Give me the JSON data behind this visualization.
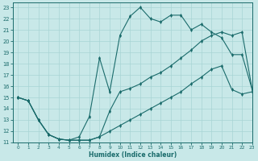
{
  "xlabel": "Humidex (Indice chaleur)",
  "line_color": "#1a6b6b",
  "bg_color": "#c8e8e8",
  "grid_color": "#a8d4d4",
  "xlim": [
    -0.5,
    23
  ],
  "ylim": [
    11,
    23.4
  ],
  "xticks": [
    0,
    1,
    2,
    3,
    4,
    5,
    6,
    7,
    8,
    9,
    10,
    11,
    12,
    13,
    14,
    15,
    16,
    17,
    18,
    19,
    20,
    21,
    22,
    23
  ],
  "yticks": [
    11,
    12,
    13,
    14,
    15,
    16,
    17,
    18,
    19,
    20,
    21,
    22,
    23
  ],
  "line1_x": [
    0,
    1,
    2,
    3,
    4,
    5,
    6,
    7,
    8,
    9,
    10,
    11,
    12,
    13,
    14,
    15,
    16,
    17,
    18,
    19,
    20,
    21,
    22,
    23
  ],
  "line1_y": [
    15,
    14.7,
    13,
    11.7,
    11.3,
    11.2,
    11.5,
    13.3,
    18.5,
    15.5,
    20.5,
    22.2,
    23.0,
    22.0,
    21.7,
    22.3,
    22.3,
    21.0,
    21.5,
    20.8,
    20.3,
    18.8,
    18.8,
    15.7
  ],
  "line2_x": [
    0,
    1,
    2,
    3,
    4,
    5,
    6,
    7,
    8,
    9,
    10,
    11,
    12,
    13,
    14,
    15,
    16,
    17,
    18,
    19,
    20,
    21,
    22,
    23
  ],
  "line2_y": [
    15,
    14.7,
    13,
    11.7,
    11.3,
    11.2,
    11.2,
    11.2,
    11.5,
    13.8,
    15.5,
    15.8,
    16.2,
    16.8,
    17.2,
    17.8,
    18.5,
    19.2,
    20.0,
    20.5,
    20.8,
    20.5,
    20.8,
    15.7
  ],
  "line3_x": [
    0,
    1,
    2,
    3,
    4,
    5,
    6,
    7,
    8,
    9,
    10,
    11,
    12,
    13,
    14,
    15,
    16,
    17,
    18,
    19,
    20,
    21,
    22,
    23
  ],
  "line3_y": [
    15,
    14.7,
    13,
    11.7,
    11.3,
    11.2,
    11.2,
    11.2,
    11.5,
    12.0,
    12.5,
    13.0,
    13.5,
    14.0,
    14.5,
    15.0,
    15.5,
    16.2,
    16.8,
    17.5,
    17.8,
    15.7,
    15.3,
    15.5
  ]
}
